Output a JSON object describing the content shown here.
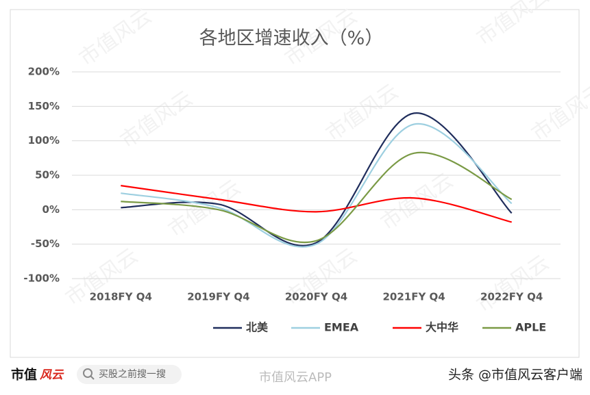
{
  "chart_data": {
    "type": "line",
    "title": "各地区增速收入（%）",
    "categories": [
      "2018FY Q4",
      "2019FY Q4",
      "2020FY Q4",
      "2021FY Q4",
      "2022FY Q4"
    ],
    "series": [
      {
        "name": "北美",
        "color": "#1f2d5c",
        "values": [
          3,
          8,
          -48,
          140,
          -5
        ]
      },
      {
        "name": "EMEA",
        "color": "#9dcfe0",
        "values": [
          24,
          3,
          -50,
          124,
          9
        ]
      },
      {
        "name": "大中华",
        "color": "#ff0000",
        "values": [
          35,
          15,
          -3,
          17,
          -18
        ]
      },
      {
        "name": "APLE",
        "color": "#7a9a45",
        "values": [
          12,
          0,
          -45,
          82,
          15
        ]
      }
    ],
    "ylim": [
      -100,
      200
    ],
    "yticks": [
      {
        "value": -100,
        "label": "-100%"
      },
      {
        "value": -50,
        "label": "-50%"
      },
      {
        "value": 0,
        "label": "0%"
      },
      {
        "value": 50,
        "label": "50%"
      },
      {
        "value": 100,
        "label": "100%"
      },
      {
        "value": 150,
        "label": "150%"
      },
      {
        "value": 200,
        "label": "200%"
      }
    ],
    "grid": true,
    "smooth": true,
    "legend": "bottom"
  },
  "watermark": "市值风云",
  "footer": {
    "logo_left": "市值",
    "logo_right": "风云",
    "search": "买股之前搜一搜",
    "center": "市值风云APP",
    "right": "头条 @市值风云客户端"
  }
}
